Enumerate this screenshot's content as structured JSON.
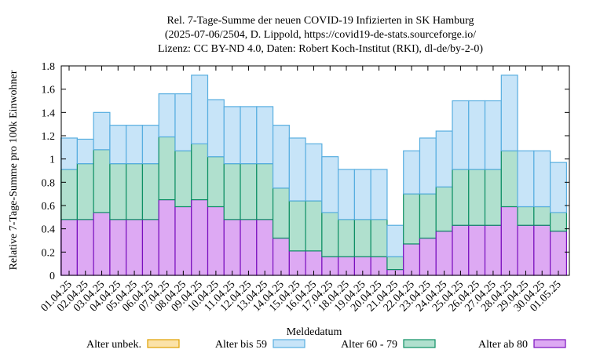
{
  "chart_data": {
    "type": "bar",
    "stacked": true,
    "title_lines": [
      "Rel. 7-Tage-Summe der neuen COVID-19 Infizierten in SK Hamburg",
      "(2025-07-06/2504, D. Lippold, https://covid19-de-stats.sourceforge.io/",
      "Lizenz: CC BY-ND 4.0, Daten: Robert Koch-Institut (RKI), dl-de/by-2-0)"
    ],
    "xlabel": "Meldedatum",
    "ylabel": "Relative 7-Tage-Summe pro 100k Einwohner",
    "ylim": [
      0,
      1.8
    ],
    "yticks": [
      "0",
      "0.2",
      "0.4",
      "0.6",
      "0.8",
      "1",
      "1.2",
      "1.4",
      "1.6",
      "1.8"
    ],
    "categories": [
      "01.04.25",
      "02.04.25",
      "03.04.25",
      "04.04.25",
      "05.04.25",
      "06.04.25",
      "07.04.25",
      "08.04.25",
      "09.04.25",
      "10.04.25",
      "11.04.25",
      "12.04.25",
      "13.04.25",
      "14.04.25",
      "15.04.25",
      "16.04.25",
      "17.04.25",
      "18.04.25",
      "19.04.25",
      "20.04.25",
      "21.04.25",
      "22.04.25",
      "23.04.25",
      "24.04.25",
      "25.04.25",
      "26.04.25",
      "27.04.25",
      "28.04.25",
      "29.04.25",
      "30.04.25",
      "01.05.25"
    ],
    "series": [
      {
        "name": "Alter ab 80",
        "color": "#dda9f3",
        "edge": "#7a0fbe",
        "values": [
          0.48,
          0.48,
          0.54,
          0.48,
          0.48,
          0.48,
          0.65,
          0.59,
          0.65,
          0.59,
          0.48,
          0.48,
          0.48,
          0.32,
          0.21,
          0.21,
          0.16,
          0.16,
          0.16,
          0.16,
          0.05,
          0.27,
          0.32,
          0.38,
          0.43,
          0.43,
          0.43,
          0.59,
          0.43,
          0.43,
          0.38
        ]
      },
      {
        "name": "Alter 60 - 79",
        "color": "#b0e0ce",
        "edge": "#0e8f65",
        "values": [
          0.43,
          0.48,
          0.54,
          0.48,
          0.48,
          0.48,
          0.54,
          0.48,
          0.48,
          0.43,
          0.48,
          0.48,
          0.48,
          0.43,
          0.43,
          0.43,
          0.38,
          0.32,
          0.32,
          0.32,
          0.11,
          0.43,
          0.38,
          0.38,
          0.48,
          0.48,
          0.48,
          0.48,
          0.16,
          0.16,
          0.16
        ]
      },
      {
        "name": "Alter bis 59",
        "color": "#c7e4f8",
        "edge": "#58aee0",
        "values": [
          0.27,
          0.21,
          0.32,
          0.33,
          0.33,
          0.33,
          0.37,
          0.49,
          0.59,
          0.49,
          0.49,
          0.49,
          0.49,
          0.54,
          0.54,
          0.49,
          0.48,
          0.43,
          0.43,
          0.43,
          0.27,
          0.37,
          0.48,
          0.48,
          0.59,
          0.59,
          0.59,
          0.65,
          0.48,
          0.48,
          0.43
        ]
      },
      {
        "name": "Alter unbek.",
        "color": "#fbe2a8",
        "edge": "#e0a000",
        "values": [
          0,
          0,
          0,
          0,
          0,
          0,
          0,
          0,
          0,
          0,
          0,
          0,
          0,
          0,
          0,
          0,
          0,
          0,
          0,
          0,
          0,
          0,
          0,
          0,
          0,
          0,
          0,
          0,
          0,
          0,
          0
        ]
      }
    ],
    "legend": {
      "placement": "bottom",
      "order": [
        "Alter unbek.",
        "Alter bis 59",
        "Alter 60 - 79",
        "Alter ab 80"
      ]
    }
  }
}
